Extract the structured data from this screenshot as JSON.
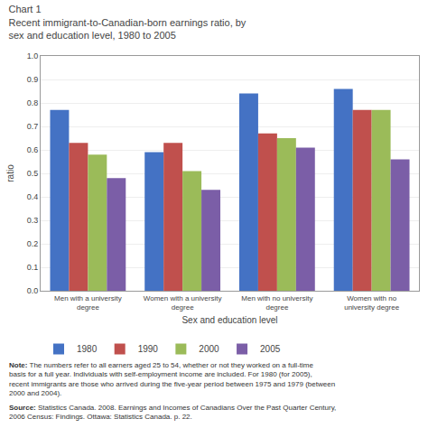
{
  "chart_data": {
    "type": "bar",
    "title": "Chart 1",
    "subtitle": "Recent immigrant-to-Canadian-born earnings ratio, by\nsex and education level, 1980 to 2005",
    "xlabel": "Sex and education level",
    "ylabel": "ratio",
    "categories": [
      "Men with a university\ndegree",
      "Women with a university\ndegree",
      "Men with no university\ndegree",
      "Women with no\nuniversity degree"
    ],
    "series": [
      {
        "name": "1980",
        "color": "#4472C4",
        "values": [
          0.77,
          0.59,
          0.84,
          0.86
        ]
      },
      {
        "name": "1990",
        "color": "#C0504D",
        "values": [
          0.63,
          0.63,
          0.67,
          0.77
        ]
      },
      {
        "name": "2000",
        "color": "#9BBB59",
        "values": [
          0.58,
          0.51,
          0.65,
          0.77
        ]
      },
      {
        "name": "2005",
        "color": "#7B5EA7",
        "values": [
          0.48,
          0.43,
          0.61,
          0.56
        ]
      }
    ],
    "ylim": [
      0,
      1
    ],
    "yticks": [
      {
        "value": 0,
        "label": "0.0"
      },
      0.1,
      0.2,
      0.3,
      0.4,
      0.5,
      0.6,
      0.7,
      0.8,
      0.9,
      {
        "value": 1,
        "label": "1.0"
      }
    ],
    "grid": true,
    "legend": "bottom",
    "annotations": [
      {
        "label": "Note:",
        "text": "The numbers refer to all earners aged 25 to 54, whether or not they worked on a full-time basis for a full year. Individuals with self-employment income are included. For 1980 (for 2005), recent immigrants are those who arrived during the five-year period between 1975 and 1979 (between 2000 and 2004)."
      },
      {
        "label": "Source:",
        "text": "Statistics Canada. 2008. Earnings and Incomes of Canadians Over the Past Quarter Century, 2006 Census: Findings. Ottawa: Statistics Canada. p. 22."
      }
    ]
  }
}
